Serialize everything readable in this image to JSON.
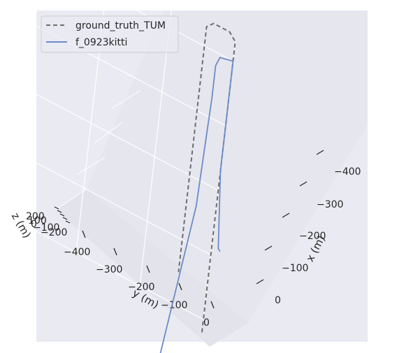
{
  "chart_data": {
    "type": "line",
    "projection": "3d",
    "xlabel": "x (m)",
    "ylabel": "y (m)",
    "zlabel": "z (m)",
    "x_ticks": [
      "−400",
      "−300",
      "−200",
      "−100",
      "0"
    ],
    "y_ticks": [
      "−400",
      "−300",
      "−200",
      "−100",
      "0"
    ],
    "z_ticks": [
      "200",
      "100",
      "0",
      "−100",
      "−200"
    ],
    "grid": true,
    "legend_position": "top-left",
    "series": [
      {
        "name": "ground_truth_TUM",
        "style": "dashed",
        "color": "#6e6e6e",
        "points": [
          {
            "x": 20,
            "y": 0,
            "z": 0
          },
          {
            "x": -430,
            "y": 0,
            "z": 0
          },
          {
            "x": -440,
            "y": -10,
            "z": 0
          },
          {
            "x": -440,
            "y": -35,
            "z": 0
          },
          {
            "x": -430,
            "y": -45,
            "z": 0
          },
          {
            "x": -50,
            "y": -45,
            "z": 0
          }
        ]
      },
      {
        "name": "f_0923kitti",
        "style": "solid",
        "color": "#6b8cc7",
        "points": [
          {
            "x": 100,
            "y": -60,
            "z": 0
          },
          {
            "x": -160,
            "y": -30,
            "z": 0
          },
          {
            "x": -330,
            "y": -25,
            "z": 0
          },
          {
            "x": -380,
            "y": -25,
            "z": 0
          },
          {
            "x": -395,
            "y": -20,
            "z": 0
          },
          {
            "x": -400,
            "y": 0,
            "z": 0
          },
          {
            "x": -230,
            "y": 0,
            "z": 0
          },
          {
            "x": -115,
            "y": 10,
            "z": 0
          },
          {
            "x": -112,
            "y": 13,
            "z": 0
          }
        ]
      }
    ]
  }
}
